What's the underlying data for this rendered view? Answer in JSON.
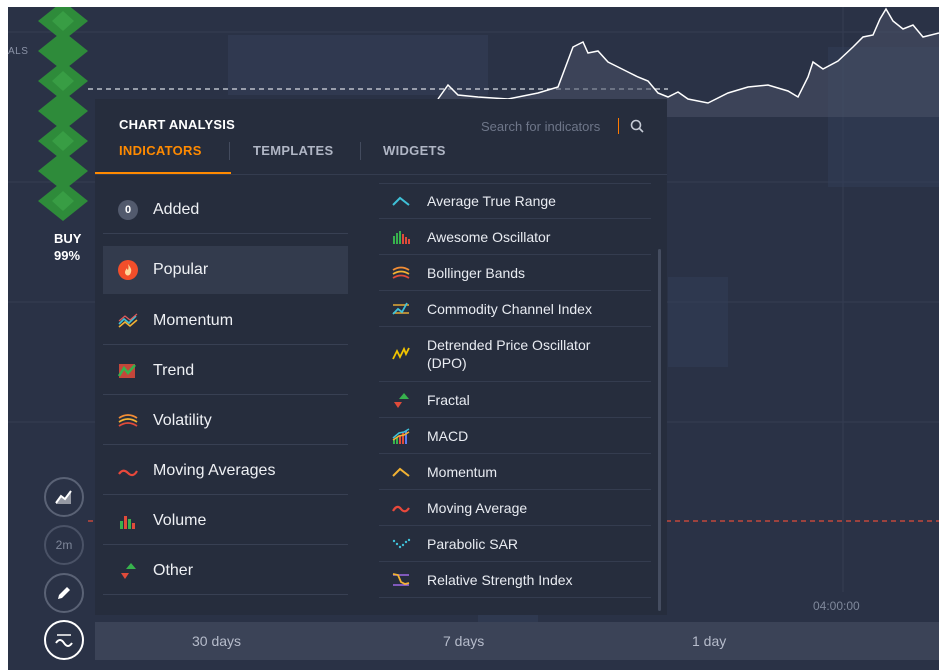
{
  "left_labels": {
    "signals": "ALS",
    "buy_label": "BUY",
    "buy_percent": "99%"
  },
  "tool_buttons": [
    {
      "name": "chart-type-button",
      "icon": "line-chart-icon",
      "text": ""
    },
    {
      "name": "timeframe-button",
      "icon": "",
      "text": "2m"
    },
    {
      "name": "drawing-tools-button",
      "icon": "pencil-icon",
      "text": ""
    },
    {
      "name": "indicators-button",
      "icon": "wave-icon",
      "text": ""
    }
  ],
  "panel": {
    "title": "CHART ANALYSIS",
    "search_placeholder": "Search for indicators",
    "tabs": [
      {
        "label": "INDICATORS",
        "active": true
      },
      {
        "label": "TEMPLATES",
        "active": false
      },
      {
        "label": "WIDGETS",
        "active": false
      }
    ],
    "added": {
      "count": "0",
      "label": "Added"
    },
    "categories": [
      {
        "label": "Popular",
        "icon": "flame-icon",
        "selected": true
      },
      {
        "label": "Momentum",
        "icon": "momentum-icon",
        "selected": false
      },
      {
        "label": "Trend",
        "icon": "trend-icon",
        "selected": false
      },
      {
        "label": "Volatility",
        "icon": "volatility-icon",
        "selected": false
      },
      {
        "label": "Moving Averages",
        "icon": "moving-averages-icon",
        "selected": false
      },
      {
        "label": "Volume",
        "icon": "volume-icon",
        "selected": false
      },
      {
        "label": "Other",
        "icon": "other-icon",
        "selected": false
      }
    ],
    "indicators": [
      {
        "label": "Average True Range",
        "icon": "atr-icon"
      },
      {
        "label": "Awesome Oscillator",
        "icon": "awesome-oscillator-icon"
      },
      {
        "label": "Bollinger Bands",
        "icon": "bollinger-bands-icon"
      },
      {
        "label": "Commodity Channel Index",
        "icon": "cci-icon"
      },
      {
        "label": "Detrended Price Oscillator (DPO)",
        "icon": "dpo-icon"
      },
      {
        "label": "Fractal",
        "icon": "fractal-icon"
      },
      {
        "label": "MACD",
        "icon": "macd-icon"
      },
      {
        "label": "Momentum",
        "icon": "momentum-indicator-icon"
      },
      {
        "label": "Moving Average",
        "icon": "moving-average-icon"
      },
      {
        "label": "Parabolic SAR",
        "icon": "parabolic-sar-icon"
      },
      {
        "label": "Relative Strength Index",
        "icon": "rsi-icon"
      }
    ]
  },
  "time_axis_label": "04:00:00",
  "periods": [
    "30 days",
    "7 days",
    "1 day"
  ],
  "colors": {
    "accent": "#ff8a00",
    "panel_bg": "#262d3d",
    "chart_bg": "#2a3246",
    "buy_green": "#2e8b3a",
    "dashed_line": "#e04b3a"
  }
}
